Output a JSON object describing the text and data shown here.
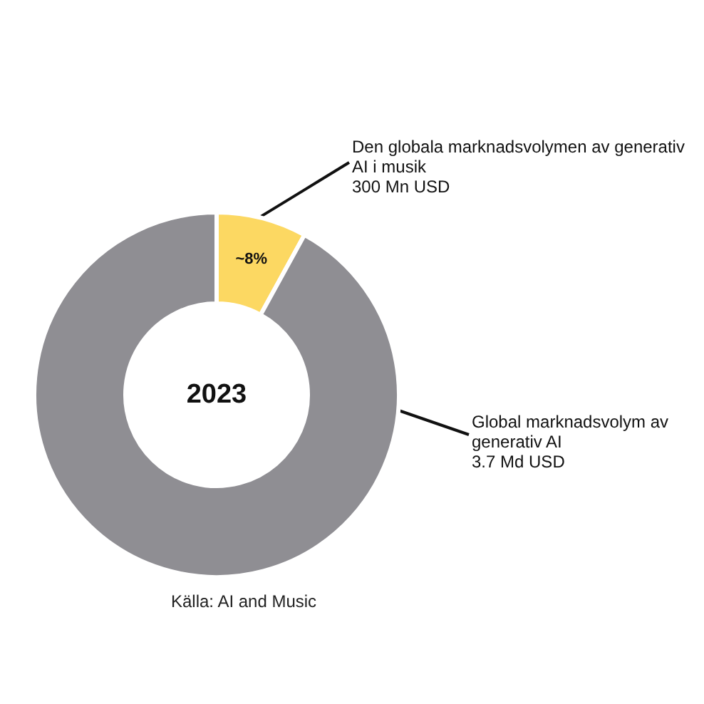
{
  "chart_data": {
    "type": "donut",
    "title": "2023",
    "categories": [
      "Den globala marknadsvolymen av generativ\nAI i musik\n300 Mn USD",
      "Global marknadsvolym av\ngenerativ AI\n3.7 Md USD"
    ],
    "values": [
      8,
      92
    ],
    "colors": [
      "#fcd862",
      "#8f8e93"
    ],
    "value_labels": [
      "~8%",
      null
    ],
    "annotations": [
      "Källa: AI and Music"
    ]
  }
}
